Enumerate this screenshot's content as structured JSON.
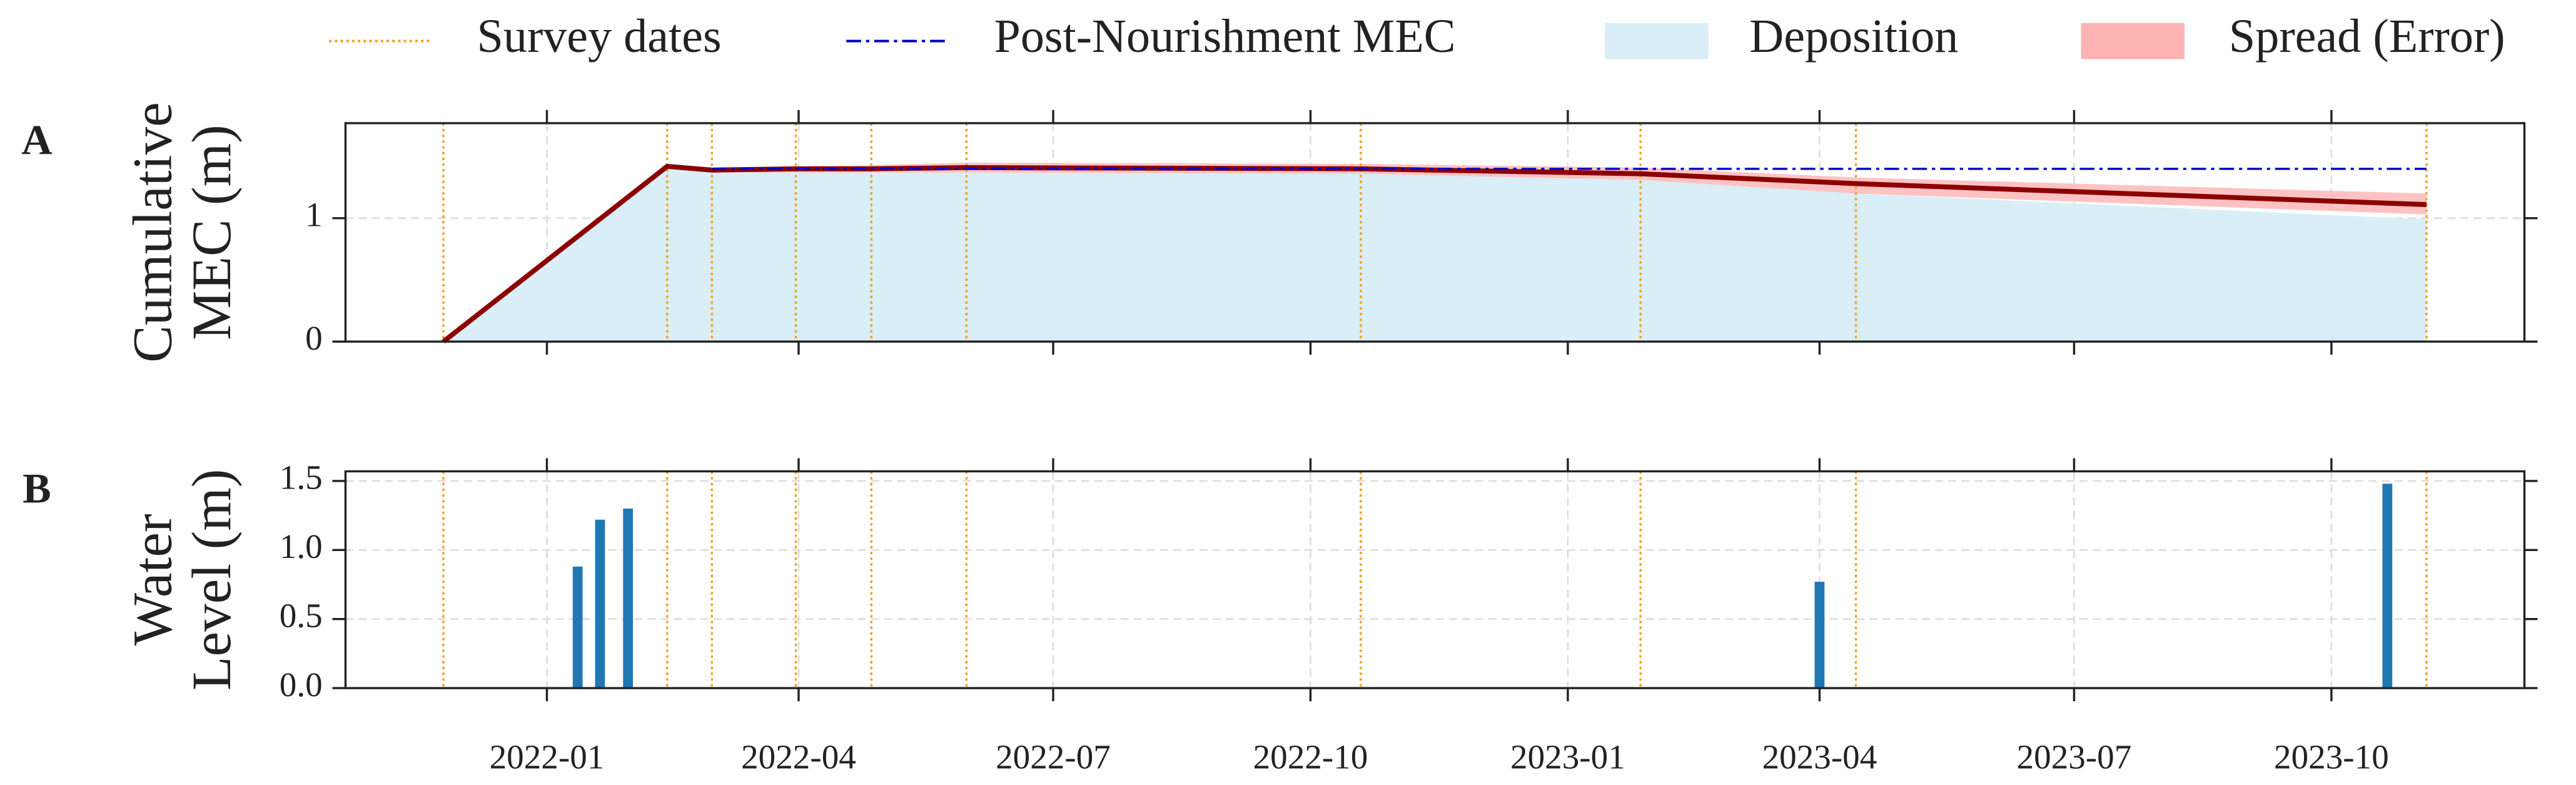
{
  "chart_data": [
    {
      "type": "line",
      "panel_label": "A",
      "ylabel": [
        "Cumulative",
        "MEC (m)"
      ],
      "xlim": [
        "2021-10-21",
        "2023-12-09"
      ],
      "ylim": [
        0,
        1.77
      ],
      "yticks": [
        0,
        1
      ],
      "xticks": [
        "2022-01",
        "2022-04",
        "2022-07",
        "2022-10",
        "2023-01",
        "2023-04",
        "2023-07",
        "2023-10"
      ],
      "grid": true,
      "survey_dates": {
        "name": "Survey dates",
        "color": "#f0a020",
        "x": [
          "2021-11-25",
          "2022-02-13",
          "2022-03-01",
          "2022-03-31",
          "2022-04-27",
          "2022-05-31",
          "2022-10-19",
          "2023-01-27",
          "2023-04-14",
          "2023-11-04"
        ]
      },
      "series": [
        {
          "color": "#8b0000",
          "x": [
            "2021-11-25",
            "2022-02-13",
            "2022-03-01",
            "2022-03-31",
            "2022-04-27",
            "2022-05-31",
            "2022-10-19",
            "2023-01-27",
            "2023-04-14",
            "2023-11-04"
          ],
          "values": [
            0,
            1.42,
            1.39,
            1.4,
            1.4,
            1.41,
            1.4,
            1.36,
            1.28,
            1.11
          ]
        },
        {
          "name": "Post-Nourishment MEC",
          "color": "#0000cc",
          "x": [
            "2022-03-01",
            "2023-11-04"
          ],
          "values": [
            1.4,
            1.4
          ]
        }
      ],
      "bands": [
        {
          "name": "Deposition",
          "color": "#d9eef6",
          "x": [
            "2021-11-25",
            "2022-02-13",
            "2022-03-01",
            "2022-03-31",
            "2022-04-27",
            "2022-05-31",
            "2022-10-19",
            "2023-01-27",
            "2023-04-14",
            "2023-11-04"
          ],
          "values": [
            0,
            1.4,
            1.37,
            1.37,
            1.37,
            1.37,
            1.36,
            1.31,
            1.2,
            0.99
          ]
        },
        {
          "name": "Spread (Error)",
          "color": "#ffb3b3",
          "x": [
            "2022-02-13",
            "2022-03-01",
            "2022-03-31",
            "2022-04-27",
            "2022-05-31",
            "2022-10-19",
            "2023-01-27",
            "2023-04-14",
            "2023-11-04"
          ],
          "upper": [
            1.44,
            1.41,
            1.42,
            1.43,
            1.45,
            1.44,
            1.41,
            1.33,
            1.2
          ],
          "lower": [
            1.4,
            1.37,
            1.37,
            1.37,
            1.37,
            1.36,
            1.31,
            1.2,
            1.03
          ]
        }
      ]
    },
    {
      "type": "bar",
      "panel_label": "B",
      "ylabel": [
        "Water",
        "Level (m)"
      ],
      "xlim": [
        "2021-10-21",
        "2023-12-09"
      ],
      "ylim": [
        0,
        1.57
      ],
      "yticks": [
        {
          "value": 0,
          "label": "0.0"
        },
        {
          "value": 0.5,
          "label": "0.5"
        },
        {
          "value": 1,
          "label": "1.0"
        },
        {
          "value": 1.5,
          "label": "1.5"
        }
      ],
      "xticks": [
        "2022-01",
        "2022-04",
        "2022-07",
        "2022-10",
        "2023-01",
        "2023-04",
        "2023-07",
        "2023-10"
      ],
      "grid": true,
      "color": "#1f77b4",
      "x": [
        "2022-01-12",
        "2022-01-20",
        "2022-01-30",
        "2023-04-01",
        "2023-10-21"
      ],
      "values": [
        0.88,
        1.22,
        1.3,
        0.77,
        1.48
      ]
    }
  ]
}
